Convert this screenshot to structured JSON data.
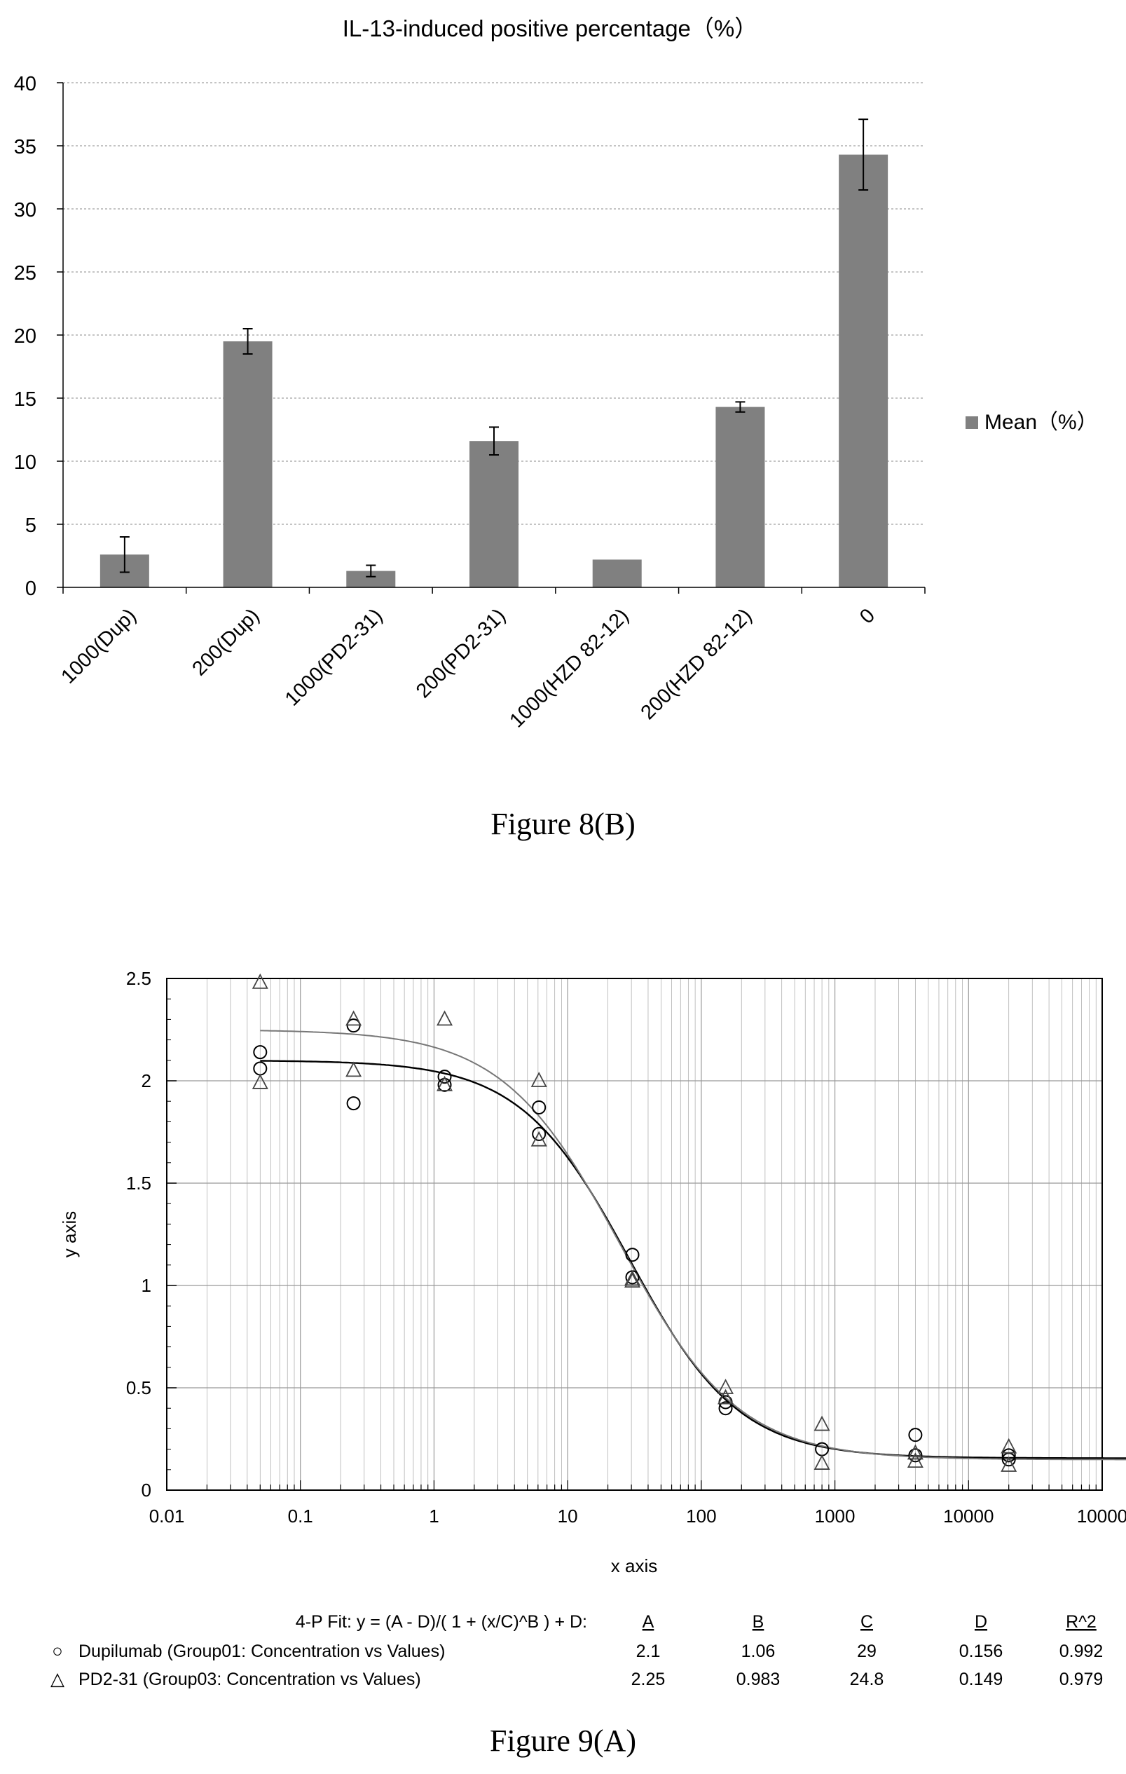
{
  "figure8b": {
    "caption": "Figure 8(B)",
    "chart_data": {
      "type": "bar",
      "title": "IL-13-induced positive percentage（%）",
      "categories": [
        "1000(Dup)",
        "200(Dup)",
        "1000(PD2-31)",
        "200(PD2-31)",
        "1000(HZD 82-12)",
        "200(HZD 82-12)",
        "0"
      ],
      "series": [
        {
          "name": "Mean（%）",
          "values": [
            2.6,
            19.5,
            1.3,
            11.6,
            2.2,
            14.3,
            34.3
          ],
          "errors": [
            1.4,
            1.0,
            0.45,
            1.1,
            0,
            0.4,
            2.8
          ]
        }
      ],
      "ylim": [
        0,
        40
      ],
      "yticks": [
        "0",
        "5",
        "10",
        "15",
        "20",
        "25",
        "30",
        "35",
        "40"
      ],
      "xlabel": "",
      "ylabel": "",
      "grid": true,
      "legend": "right",
      "colors": {
        "bar": "#808080",
        "grid": "#a0a0a0"
      }
    }
  },
  "figure9a": {
    "caption": "Figure 9(A)",
    "chart_data": {
      "type": "scatter",
      "title": "",
      "xlabel": "x axis",
      "ylabel": "y axis",
      "xscale": "log",
      "xlim": [
        0.01,
        100000
      ],
      "ylim": [
        0,
        2.5
      ],
      "xticks": [
        "0.01",
        "0.1",
        "1",
        "10",
        "100",
        "1000",
        "10000",
        "10000"
      ],
      "yticks": [
        "0",
        "0.5",
        "1",
        "1.5",
        "2",
        "2.5"
      ],
      "grid": true,
      "series": [
        {
          "name": "Dupilumab (Group01: Concentration vs Values)",
          "marker": "circle",
          "x": [
            0.05,
            0.05,
            0.25,
            0.25,
            1.2,
            1.2,
            6.1,
            6.1,
            30.5,
            30.5,
            152,
            152,
            800,
            4000,
            4000,
            20000,
            20000
          ],
          "y": [
            2.14,
            2.06,
            2.27,
            1.89,
            2.02,
            1.98,
            1.87,
            1.74,
            1.15,
            1.04,
            0.43,
            0.4,
            0.2,
            0.27,
            0.17,
            0.17,
            0.15
          ],
          "fit": {
            "A": 2.1,
            "B": 1.06,
            "C": 29,
            "D": 0.156,
            "R2": 0.992
          }
        },
        {
          "name": "PD2-31 (Group03: Concentration vs Values)",
          "marker": "triangle",
          "x": [
            0.05,
            0.05,
            0.25,
            0.25,
            1.2,
            1.2,
            6.1,
            6.1,
            30.5,
            30.5,
            152,
            152,
            800,
            800,
            4000,
            4000,
            20000,
            20000
          ],
          "y": [
            2.48,
            1.99,
            2.3,
            2.05,
            2.3,
            1.98,
            2.0,
            1.71,
            1.03,
            1.02,
            0.5,
            0.45,
            0.32,
            0.13,
            0.18,
            0.14,
            0.21,
            0.12
          ],
          "fit": {
            "A": 2.25,
            "B": 0.983,
            "C": 24.8,
            "D": 0.149,
            "R2": 0.979
          }
        }
      ],
      "fit_table": {
        "header": "4-P Fit:  y = (A - D)/( 1 + (x/C)^B ) + D:",
        "cols": [
          "A",
          "B",
          "C",
          "D",
          "R^2"
        ],
        "rows": [
          {
            "marker": "○",
            "label": "Dupilumab (Group01: Concentration vs Values)",
            "vals": [
              "2.1",
              "1.06",
              "29",
              "0.156",
              "0.992"
            ]
          },
          {
            "marker": "△",
            "label": "PD2-31 (Group03: Concentration vs Values)",
            "vals": [
              "2.25",
              "0.983",
              "24.8",
              "0.149",
              "0.979"
            ]
          }
        ]
      },
      "colors": {
        "grid": "#b0b0b0",
        "fit1": "#000000",
        "fit2": "#777777"
      }
    }
  }
}
